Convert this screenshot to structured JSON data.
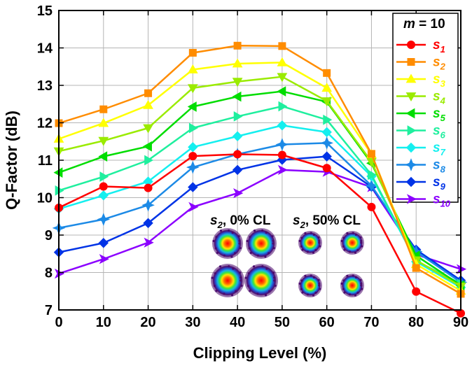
{
  "chart_data": {
    "type": "line",
    "xlabel": "Clipping Level (%)",
    "ylabel": "Q-Factor (dB)",
    "xlim": [
      0,
      90
    ],
    "ylim": [
      7,
      15
    ],
    "x": [
      0,
      10,
      20,
      30,
      40,
      50,
      60,
      70,
      80,
      90
    ],
    "x_ticks": [
      "0",
      "10",
      "20",
      "30",
      "40",
      "50",
      "60",
      "70",
      "80",
      "90"
    ],
    "y_ticks": [
      "7",
      "8",
      "9",
      "10",
      "11",
      "12",
      "13",
      "14",
      "15"
    ],
    "grid": true,
    "legend_position": "top-right",
    "legend_title": {
      "var": "m",
      "rest": " = 10"
    },
    "series": [
      {
        "name": "s",
        "sub": "1",
        "color": "#ff0000",
        "marker": "circle",
        "values": [
          9.73,
          10.3,
          10.26,
          11.11,
          11.16,
          11.14,
          10.79,
          9.75,
          7.49,
          6.91
        ]
      },
      {
        "name": "s",
        "sub": "2",
        "color": "#ff8c00",
        "marker": "square",
        "values": [
          11.99,
          12.36,
          12.79,
          13.87,
          14.06,
          14.05,
          13.33,
          11.17,
          8.12,
          7.43
        ]
      },
      {
        "name": "s",
        "sub": "3",
        "color": "#ffff00",
        "marker": "triangle-up",
        "values": [
          11.57,
          11.99,
          12.47,
          13.42,
          13.58,
          13.61,
          12.93,
          11.16,
          8.22,
          7.51
        ]
      },
      {
        "name": "s",
        "sub": "4",
        "color": "#9aeb00",
        "marker": "triangle-down",
        "values": [
          11.24,
          11.52,
          11.86,
          12.93,
          13.1,
          13.23,
          12.58,
          10.96,
          8.33,
          7.63
        ]
      },
      {
        "name": "s",
        "sub": "5",
        "color": "#00dd00",
        "marker": "triangle-left",
        "values": [
          10.67,
          11.1,
          11.37,
          12.43,
          12.7,
          12.84,
          12.56,
          10.92,
          8.45,
          7.66
        ]
      },
      {
        "name": "s",
        "sub": "6",
        "color": "#1fef9e",
        "marker": "triangle-right",
        "values": [
          10.19,
          10.56,
          11.0,
          11.86,
          12.17,
          12.44,
          12.08,
          10.61,
          8.31,
          7.7
        ]
      },
      {
        "name": "s",
        "sub": "7",
        "color": "#14efef",
        "marker": "diamond",
        "values": [
          9.7,
          10.06,
          10.43,
          11.35,
          11.64,
          11.93,
          11.75,
          10.57,
          8.29,
          7.6
        ]
      },
      {
        "name": "s",
        "sub": "8",
        "color": "#1c8ae6",
        "marker": "star4",
        "values": [
          9.19,
          9.42,
          9.8,
          10.81,
          11.16,
          11.42,
          11.46,
          10.32,
          8.56,
          7.74
        ]
      },
      {
        "name": "s",
        "sub": "9",
        "color": "#0033e6",
        "marker": "diamond",
        "values": [
          8.54,
          8.79,
          9.32,
          10.28,
          10.74,
          11.01,
          11.1,
          10.29,
          8.61,
          7.79
        ]
      },
      {
        "name": "s",
        "sub": "10",
        "color": "#8b00ff",
        "marker": "arrow-right",
        "values": [
          7.97,
          8.36,
          8.8,
          9.75,
          10.12,
          10.74,
          10.69,
          10.28,
          8.48,
          8.09
        ]
      }
    ],
    "annotations": [
      {
        "var": "s",
        "sub": "2",
        "rest": ", 0% CL"
      },
      {
        "var": "s",
        "sub": "2",
        "rest": ", 50% CL"
      }
    ]
  },
  "colors": {
    "grid": "#b5b5b5",
    "axis": "#000000",
    "constellation_outer": "#4b0a6e",
    "constellation_inner": "#ff0000"
  }
}
